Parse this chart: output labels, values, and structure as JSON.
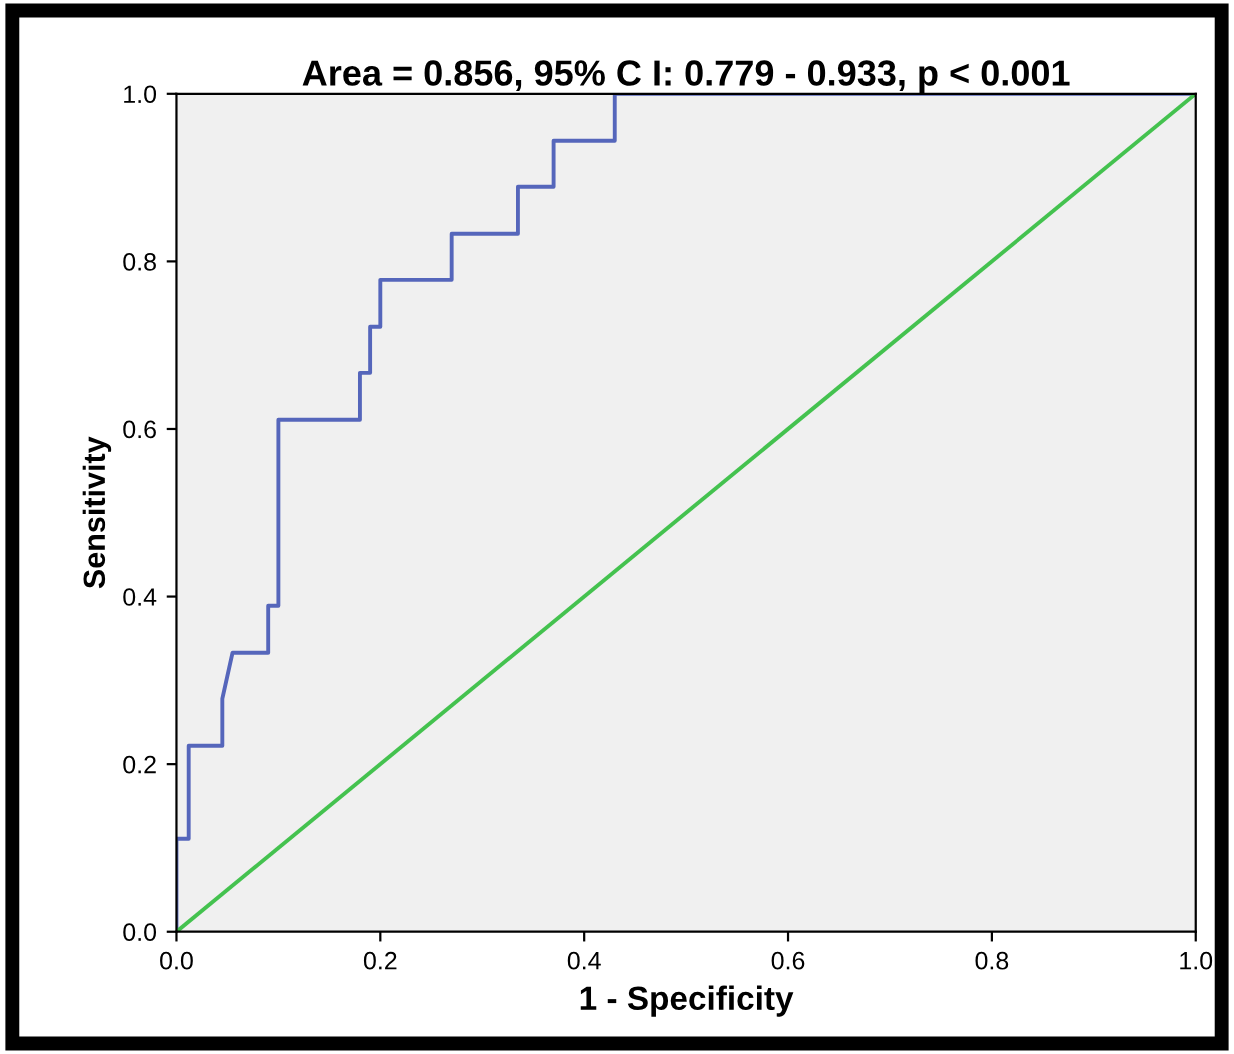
{
  "chart_data": {
    "type": "line",
    "title": "Area = 0.856, 95% C I: 0.779 - 0.933, p < 0.001",
    "xlabel": "1 - Specificity",
    "ylabel": "Sensitivity",
    "xlim": [
      0,
      1
    ],
    "ylim": [
      0,
      1
    ],
    "xticks": [
      {
        "value": 0,
        "label": "0.0"
      },
      0.2,
      0.4,
      0.6,
      0.8,
      {
        "value": 1,
        "label": "1.0"
      }
    ],
    "yticks": [
      {
        "value": 0,
        "label": "0.0"
      },
      0.2,
      0.4,
      0.6,
      0.8,
      {
        "value": 1,
        "label": "1.0"
      }
    ],
    "grid": false,
    "legend": false,
    "series": [
      {
        "color": "#5566bb",
        "x": [
          0,
          0,
          0.012,
          0.012,
          0.045,
          0.045,
          0.055,
          0.09,
          0.09,
          0.1,
          0.1,
          0.18,
          0.18,
          0.19,
          0.19,
          0.2,
          0.2,
          0.27,
          0.27,
          0.335,
          0.335,
          0.37,
          0.37,
          0.43,
          0.43,
          1
        ],
        "values": [
          0,
          0.111,
          0.111,
          0.222,
          0.222,
          0.278,
          0.333,
          0.333,
          0.389,
          0.389,
          0.611,
          0.611,
          0.667,
          0.667,
          0.722,
          0.722,
          0.778,
          0.778,
          0.833,
          0.833,
          0.889,
          0.889,
          0.944,
          0.944,
          1,
          1
        ]
      },
      {
        "color": "#44c24f",
        "x": [
          0,
          1
        ],
        "values": [
          0,
          1
        ]
      }
    ]
  }
}
